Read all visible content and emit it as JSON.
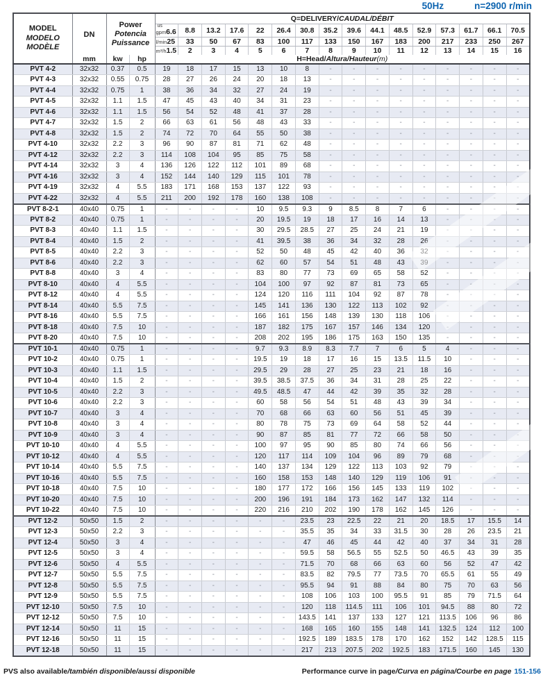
{
  "top": {
    "frequency": "50Hz",
    "speed": "n=2900 r/min"
  },
  "head": {
    "model_en": "MODEL",
    "model_es": "MODELO",
    "model_fr": "MODÈLE",
    "dn": "DN",
    "dn_unit": "mm",
    "power_en": "Power",
    "power_es": "Potencia",
    "power_fr": "Puissance",
    "kw": "kw",
    "hp": "hp",
    "delivery_en": "Q=DELIVERY/",
    "delivery_intl": "CAUDAL/DÉBIT",
    "head_en": "H=Head/",
    "head_intl": "Altura/Hauteur",
    "head_unit": "(m)",
    "unit_us": "us",
    "unit_gpm": "gpm",
    "unit_lmin": "l/min",
    "unit_m3h": "m³/h",
    "gpm": [
      "6.6",
      "8.8",
      "13.2",
      "17.6",
      "22",
      "26.4",
      "30.8",
      "35.2",
      "39.6",
      "44.1",
      "48.5",
      "52.9",
      "57.3",
      "61.7",
      "66.1",
      "70.5"
    ],
    "lmin": [
      "25",
      "33",
      "50",
      "67",
      "83",
      "100",
      "117",
      "133",
      "150",
      "167",
      "183",
      "200",
      "217",
      "233",
      "250",
      "267"
    ],
    "m3h": [
      "1.5",
      "2",
      "3",
      "4",
      "5",
      "6",
      "7",
      "8",
      "9",
      "10",
      "11",
      "12",
      "13",
      "14",
      "15",
      "16"
    ]
  },
  "rows": [
    {
      "m": "PVT 4-2",
      "dn": "32x32",
      "kw": "0.37",
      "hp": "0.5",
      "h": [
        "19",
        "18",
        "17",
        "15",
        "13",
        "10",
        "8",
        "-",
        "-",
        "-",
        "-",
        "-",
        "-",
        "-",
        "-",
        "-"
      ]
    },
    {
      "m": "PVT 4-3",
      "dn": "32x32",
      "kw": "0.55",
      "hp": "0.75",
      "h": [
        "28",
        "27",
        "26",
        "24",
        "20",
        "18",
        "13",
        "-",
        "-",
        "-",
        "-",
        "-",
        "-",
        "-",
        "-",
        "-"
      ]
    },
    {
      "m": "PVT 4-4",
      "dn": "32x32",
      "kw": "0.75",
      "hp": "1",
      "h": [
        "38",
        "36",
        "34",
        "32",
        "27",
        "24",
        "19",
        "-",
        "-",
        "-",
        "-",
        "-",
        "-",
        "-",
        "-",
        "-"
      ]
    },
    {
      "m": "PVT 4-5",
      "dn": "32x32",
      "kw": "1.1",
      "hp": "1.5",
      "h": [
        "47",
        "45",
        "43",
        "40",
        "34",
        "31",
        "23",
        "-",
        "-",
        "-",
        "-",
        "-",
        "-",
        "-",
        "-",
        "-"
      ]
    },
    {
      "m": "PVT 4-6",
      "dn": "32x32",
      "kw": "1.1",
      "hp": "1.5",
      "h": [
        "56",
        "54",
        "52",
        "48",
        "41",
        "37",
        "28",
        "-",
        "-",
        "-",
        "-",
        "-",
        "-",
        "-",
        "-",
        "-"
      ]
    },
    {
      "m": "PVT 4-7",
      "dn": "32x32",
      "kw": "1.5",
      "hp": "2",
      "h": [
        "66",
        "63",
        "61",
        "56",
        "48",
        "43",
        "33",
        "-",
        "-",
        "-",
        "-",
        "-",
        "-",
        "-",
        "-",
        "-"
      ]
    },
    {
      "m": "PVT 4-8",
      "dn": "32x32",
      "kw": "1.5",
      "hp": "2",
      "h": [
        "74",
        "72",
        "70",
        "64",
        "55",
        "50",
        "38",
        "-",
        "-",
        "-",
        "-",
        "-",
        "-",
        "-",
        "-",
        "-"
      ]
    },
    {
      "m": "PVT 4-10",
      "dn": "32x32",
      "kw": "2.2",
      "hp": "3",
      "h": [
        "96",
        "90",
        "87",
        "81",
        "71",
        "62",
        "48",
        "-",
        "-",
        "-",
        "-",
        "-",
        "-",
        "-",
        "-",
        "-"
      ]
    },
    {
      "m": "PVT 4-12",
      "dn": "32x32",
      "kw": "2.2",
      "hp": "3",
      "h": [
        "114",
        "108",
        "104",
        "95",
        "85",
        "75",
        "58",
        "-",
        "-",
        "-",
        "-",
        "-",
        "-",
        "-",
        "-",
        "-"
      ]
    },
    {
      "m": "PVT 4-14",
      "dn": "32x32",
      "kw": "3",
      "hp": "4",
      "h": [
        "136",
        "126",
        "122",
        "112",
        "101",
        "89",
        "68",
        "-",
        "-",
        "-",
        "-",
        "-",
        "-",
        "-",
        "-",
        "-"
      ]
    },
    {
      "m": "PVT 4-16",
      "dn": "32x32",
      "kw": "3",
      "hp": "4",
      "h": [
        "152",
        "144",
        "140",
        "129",
        "115",
        "101",
        "78",
        "-",
        "-",
        "-",
        "-",
        "-",
        "-",
        "-",
        "-",
        "-"
      ]
    },
    {
      "m": "PVT 4-19",
      "dn": "32x32",
      "kw": "4",
      "hp": "5.5",
      "h": [
        "183",
        "171",
        "168",
        "153",
        "137",
        "122",
        "93",
        "-",
        "-",
        "-",
        "-",
        "-",
        "-",
        "-",
        "-",
        "-"
      ]
    },
    {
      "m": "PVT 4-22",
      "dn": "32x32",
      "kw": "4",
      "hp": "5.5",
      "h": [
        "211",
        "200",
        "192",
        "178",
        "160",
        "138",
        "108",
        "-",
        "-",
        "-",
        "-",
        "-",
        "-",
        "-",
        "-",
        "-"
      ]
    },
    {
      "m": "PVT 8-2-1",
      "dn": "40x40",
      "kw": "0.75",
      "hp": "1",
      "sep": true,
      "h": [
        "-",
        "-",
        "-",
        "-",
        "10",
        "9.5",
        "9.3",
        "9",
        "8.5",
        "8",
        "7",
        "6",
        "-",
        "-",
        "-",
        "-"
      ]
    },
    {
      "m": "PVT 8-2",
      "dn": "40x40",
      "kw": "0.75",
      "hp": "1",
      "h": [
        "-",
        "-",
        "-",
        "-",
        "20",
        "19.5",
        "19",
        "18",
        "17",
        "16",
        "14",
        "13",
        "-",
        "-",
        "-",
        "-"
      ]
    },
    {
      "m": "PVT 8-3",
      "dn": "40x40",
      "kw": "1.1",
      "hp": "1.5",
      "h": [
        "-",
        "-",
        "-",
        "-",
        "30",
        "29.5",
        "28.5",
        "27",
        "25",
        "24",
        "21",
        "19",
        "-",
        "-",
        "-",
        "-"
      ]
    },
    {
      "m": "PVT 8-4",
      "dn": "40x40",
      "kw": "1.5",
      "hp": "2",
      "h": [
        "-",
        "-",
        "-",
        "-",
        "41",
        "39.5",
        "38",
        "36",
        "34",
        "32",
        "28",
        "26",
        "-",
        "-",
        "-",
        "-"
      ]
    },
    {
      "m": "PVT 8-5",
      "dn": "40x40",
      "kw": "2.2",
      "hp": "3",
      "h": [
        "-",
        "-",
        "-",
        "-",
        "52",
        "50",
        "48",
        "45",
        "42",
        "40",
        "36",
        "32",
        "-",
        "-",
        "-",
        "-"
      ]
    },
    {
      "m": "PVT 8-6",
      "dn": "40x40",
      "kw": "2.2",
      "hp": "3",
      "h": [
        "-",
        "-",
        "-",
        "-",
        "62",
        "60",
        "57",
        "54",
        "51",
        "48",
        "43",
        "39",
        "-",
        "-",
        "-",
        "-"
      ]
    },
    {
      "m": "PVT 8-8",
      "dn": "40x40",
      "kw": "3",
      "hp": "4",
      "h": [
        "-",
        "-",
        "-",
        "-",
        "83",
        "80",
        "77",
        "73",
        "69",
        "65",
        "58",
        "52",
        "-",
        "-",
        "-",
        "-"
      ]
    },
    {
      "m": "PVT 8-10",
      "dn": "40x40",
      "kw": "4",
      "hp": "5.5",
      "h": [
        "-",
        "-",
        "-",
        "-",
        "104",
        "100",
        "97",
        "92",
        "87",
        "81",
        "73",
        "65",
        "-",
        "-",
        "-",
        "-"
      ]
    },
    {
      "m": "PVT 8-12",
      "dn": "40x40",
      "kw": "4",
      "hp": "5.5",
      "h": [
        "-",
        "-",
        "-",
        "-",
        "124",
        "120",
        "116",
        "111",
        "104",
        "92",
        "87",
        "78",
        "-",
        "-",
        "-",
        "-"
      ]
    },
    {
      "m": "PVT 8-14",
      "dn": "40x40",
      "kw": "5.5",
      "hp": "7.5",
      "h": [
        "-",
        "-",
        "-",
        "-",
        "145",
        "141",
        "136",
        "130",
        "122",
        "113",
        "102",
        "92",
        "-",
        "-",
        "-",
        "-"
      ]
    },
    {
      "m": "PVT 8-16",
      "dn": "40x40",
      "kw": "5.5",
      "hp": "7.5",
      "h": [
        "-",
        "-",
        "-",
        "-",
        "166",
        "161",
        "156",
        "148",
        "139",
        "130",
        "118",
        "106",
        "-",
        "-",
        "-",
        "-"
      ]
    },
    {
      "m": "PVT 8-18",
      "dn": "40x40",
      "kw": "7.5",
      "hp": "10",
      "h": [
        "-",
        "-",
        "-",
        "-",
        "187",
        "182",
        "175",
        "167",
        "157",
        "146",
        "134",
        "120",
        "-",
        "-",
        "-",
        "-"
      ]
    },
    {
      "m": "PVT 8-20",
      "dn": "40x40",
      "kw": "7.5",
      "hp": "10",
      "h": [
        "-",
        "-",
        "-",
        "-",
        "208",
        "202",
        "195",
        "186",
        "175",
        "163",
        "150",
        "135",
        "-",
        "-",
        "-",
        "-"
      ]
    },
    {
      "m": "PVT 10-1",
      "dn": "40x40",
      "kw": "0.75",
      "hp": "1",
      "sep": true,
      "h": [
        "-",
        "-",
        "-",
        "-",
        "9.7",
        "9.3",
        "8.9",
        "8.3",
        "7.7",
        "7",
        "6",
        "5",
        "4",
        "-",
        "-",
        "-"
      ]
    },
    {
      "m": "PVT 10-2",
      "dn": "40x40",
      "kw": "0.75",
      "hp": "1",
      "h": [
        "-",
        "-",
        "-",
        "-",
        "19.5",
        "19",
        "18",
        "17",
        "16",
        "15",
        "13.5",
        "11.5",
        "10",
        "-",
        "-",
        "-"
      ]
    },
    {
      "m": "PVT 10-3",
      "dn": "40x40",
      "kw": "1.1",
      "hp": "1.5",
      "h": [
        "-",
        "-",
        "-",
        "-",
        "29.5",
        "29",
        "28",
        "27",
        "25",
        "23",
        "21",
        "18",
        "16",
        "-",
        "-",
        "-"
      ]
    },
    {
      "m": "PVT 10-4",
      "dn": "40x40",
      "kw": "1.5",
      "hp": "2",
      "h": [
        "-",
        "-",
        "-",
        "-",
        "39.5",
        "38.5",
        "37.5",
        "36",
        "34",
        "31",
        "28",
        "25",
        "22",
        "-",
        "-",
        "-"
      ]
    },
    {
      "m": "PVT 10-5",
      "dn": "40x40",
      "kw": "2.2",
      "hp": "3",
      "h": [
        "-",
        "-",
        "-",
        "-",
        "49.5",
        "48.5",
        "47",
        "44",
        "42",
        "39",
        "35",
        "32",
        "28",
        "-",
        "-",
        "-"
      ]
    },
    {
      "m": "PVT 10-6",
      "dn": "40x40",
      "kw": "2.2",
      "hp": "3",
      "h": [
        "-",
        "-",
        "-",
        "-",
        "60",
        "58",
        "56",
        "54",
        "51",
        "48",
        "43",
        "39",
        "34",
        "-",
        "-",
        "-"
      ]
    },
    {
      "m": "PVT 10-7",
      "dn": "40x40",
      "kw": "3",
      "hp": "4",
      "h": [
        "-",
        "-",
        "-",
        "-",
        "70",
        "68",
        "66",
        "63",
        "60",
        "56",
        "51",
        "45",
        "39",
        "-",
        "-",
        "-"
      ]
    },
    {
      "m": "PVT 10-8",
      "dn": "40x40",
      "kw": "3",
      "hp": "4",
      "h": [
        "-",
        "-",
        "-",
        "-",
        "80",
        "78",
        "75",
        "73",
        "69",
        "64",
        "58",
        "52",
        "44",
        "-",
        "-",
        "-"
      ]
    },
    {
      "m": "PVT 10-9",
      "dn": "40x40",
      "kw": "3",
      "hp": "4",
      "h": [
        "-",
        "-",
        "-",
        "-",
        "90",
        "87",
        "85",
        "81",
        "77",
        "72",
        "66",
        "58",
        "50",
        "-",
        "-",
        "-"
      ]
    },
    {
      "m": "PVT 10-10",
      "dn": "40x40",
      "kw": "4",
      "hp": "5.5",
      "h": [
        "-",
        "-",
        "-",
        "-",
        "100",
        "97",
        "95",
        "90",
        "85",
        "80",
        "74",
        "66",
        "56",
        "-",
        "-",
        "-"
      ]
    },
    {
      "m": "PVT 10-12",
      "dn": "40x40",
      "kw": "4",
      "hp": "5.5",
      "h": [
        "-",
        "-",
        "-",
        "-",
        "120",
        "117",
        "114",
        "109",
        "104",
        "96",
        "89",
        "79",
        "68",
        "-",
        "-",
        "-"
      ]
    },
    {
      "m": "PVT 10-14",
      "dn": "40x40",
      "kw": "5.5",
      "hp": "7.5",
      "h": [
        "-",
        "-",
        "-",
        "-",
        "140",
        "137",
        "134",
        "129",
        "122",
        "113",
        "103",
        "92",
        "79",
        "-",
        "-",
        "-"
      ]
    },
    {
      "m": "PVT 10-16",
      "dn": "40x40",
      "kw": "5.5",
      "hp": "7.5",
      "h": [
        "-",
        "-",
        "-",
        "-",
        "160",
        "158",
        "153",
        "148",
        "140",
        "129",
        "119",
        "106",
        "91",
        "-",
        "-",
        "-"
      ]
    },
    {
      "m": "PVT 10-18",
      "dn": "40x40",
      "kw": "7.5",
      "hp": "10",
      "h": [
        "-",
        "-",
        "-",
        "-",
        "180",
        "177",
        "172",
        "166",
        "156",
        "145",
        "133",
        "119",
        "102",
        "-",
        "-",
        "-"
      ]
    },
    {
      "m": "PVT 10-20",
      "dn": "40x40",
      "kw": "7.5",
      "hp": "10",
      "h": [
        "-",
        "-",
        "-",
        "-",
        "200",
        "196",
        "191",
        "184",
        "173",
        "162",
        "147",
        "132",
        "114",
        "-",
        "-",
        "-"
      ]
    },
    {
      "m": "PVT 10-22",
      "dn": "40x40",
      "kw": "7.5",
      "hp": "10",
      "h": [
        "-",
        "-",
        "-",
        "-",
        "220",
        "216",
        "210",
        "202",
        "190",
        "178",
        "162",
        "145",
        "126",
        "-",
        "-",
        "-"
      ]
    },
    {
      "m": "PVT 12-2",
      "dn": "50x50",
      "kw": "1.5",
      "hp": "2",
      "sep": true,
      "h": [
        "-",
        "-",
        "-",
        "-",
        "-",
        "-",
        "23.5",
        "23",
        "22.5",
        "22",
        "21",
        "20",
        "18.5",
        "17",
        "15.5",
        "14"
      ]
    },
    {
      "m": "PVT 12-3",
      "dn": "50x50",
      "kw": "2.2",
      "hp": "3",
      "h": [
        "-",
        "-",
        "-",
        "-",
        "-",
        "-",
        "35.5",
        "35",
        "34",
        "33",
        "31.5",
        "30",
        "28",
        "26",
        "23.5",
        "21"
      ]
    },
    {
      "m": "PVT 12-4",
      "dn": "50x50",
      "kw": "3",
      "hp": "4",
      "h": [
        "-",
        "-",
        "-",
        "-",
        "-",
        "-",
        "47",
        "46",
        "45",
        "44",
        "42",
        "40",
        "37",
        "34",
        "31",
        "28"
      ]
    },
    {
      "m": "PVT 12-5",
      "dn": "50x50",
      "kw": "3",
      "hp": "4",
      "h": [
        "-",
        "-",
        "-",
        "-",
        "-",
        "-",
        "59.5",
        "58",
        "56.5",
        "55",
        "52.5",
        "50",
        "46.5",
        "43",
        "39",
        "35"
      ]
    },
    {
      "m": "PVT 12-6",
      "dn": "50x50",
      "kw": "4",
      "hp": "5.5",
      "h": [
        "-",
        "-",
        "-",
        "-",
        "-",
        "-",
        "71.5",
        "70",
        "68",
        "66",
        "63",
        "60",
        "56",
        "52",
        "47",
        "42"
      ]
    },
    {
      "m": "PVT 12-7",
      "dn": "50x50",
      "kw": "5.5",
      "hp": "7.5",
      "h": [
        "-",
        "-",
        "-",
        "-",
        "-",
        "-",
        "83.5",
        "82",
        "79.5",
        "77",
        "73.5",
        "70",
        "65.5",
        "61",
        "55",
        "49"
      ]
    },
    {
      "m": "PVT 12-8",
      "dn": "50x50",
      "kw": "5.5",
      "hp": "7.5",
      "h": [
        "-",
        "-",
        "-",
        "-",
        "-",
        "-",
        "95.5",
        "94",
        "91",
        "88",
        "84",
        "80",
        "75",
        "70",
        "63",
        "56"
      ]
    },
    {
      "m": "PVT 12-9",
      "dn": "50x50",
      "kw": "5.5",
      "hp": "7.5",
      "h": [
        "-",
        "-",
        "-",
        "-",
        "-",
        "-",
        "108",
        "106",
        "103",
        "100",
        "95.5",
        "91",
        "85",
        "79",
        "71.5",
        "64"
      ]
    },
    {
      "m": "PVT 12-10",
      "dn": "50x50",
      "kw": "7.5",
      "hp": "10",
      "h": [
        "-",
        "-",
        "-",
        "-",
        "-",
        "-",
        "120",
        "118",
        "114.5",
        "111",
        "106",
        "101",
        "94.5",
        "88",
        "80",
        "72"
      ]
    },
    {
      "m": "PVT 12-12",
      "dn": "50x50",
      "kw": "7.5",
      "hp": "10",
      "h": [
        "-",
        "-",
        "-",
        "-",
        "-",
        "-",
        "143.5",
        "141",
        "137",
        "133",
        "127",
        "121",
        "113.5",
        "106",
        "96",
        "86"
      ]
    },
    {
      "m": "PVT 12-14",
      "dn": "50x50",
      "kw": "11",
      "hp": "15",
      "h": [
        "-",
        "-",
        "-",
        "-",
        "-",
        "-",
        "168",
        "165",
        "160",
        "155",
        "148",
        "141",
        "132.5",
        "124",
        "112",
        "100"
      ]
    },
    {
      "m": "PVT 12-16",
      "dn": "50x50",
      "kw": "11",
      "hp": "15",
      "h": [
        "-",
        "-",
        "-",
        "-",
        "-",
        "-",
        "192.5",
        "189",
        "183.5",
        "178",
        "170",
        "162",
        "152",
        "142",
        "128.5",
        "115"
      ]
    },
    {
      "m": "PVT 12-18",
      "dn": "50x50",
      "kw": "11",
      "hp": "15",
      "h": [
        "-",
        "-",
        "-",
        "-",
        "-",
        "-",
        "217",
        "213",
        "207.5",
        "202",
        "192.5",
        "183",
        "171.5",
        "160",
        "145",
        "130"
      ]
    }
  ],
  "footer": {
    "left_en": "PVS also available",
    "left_intl": "/también disponible/aussi disponible",
    "right_en": "Performance curve in page",
    "right_intl": "/Curva en página/Courbe en page",
    "pages": "151-156"
  }
}
